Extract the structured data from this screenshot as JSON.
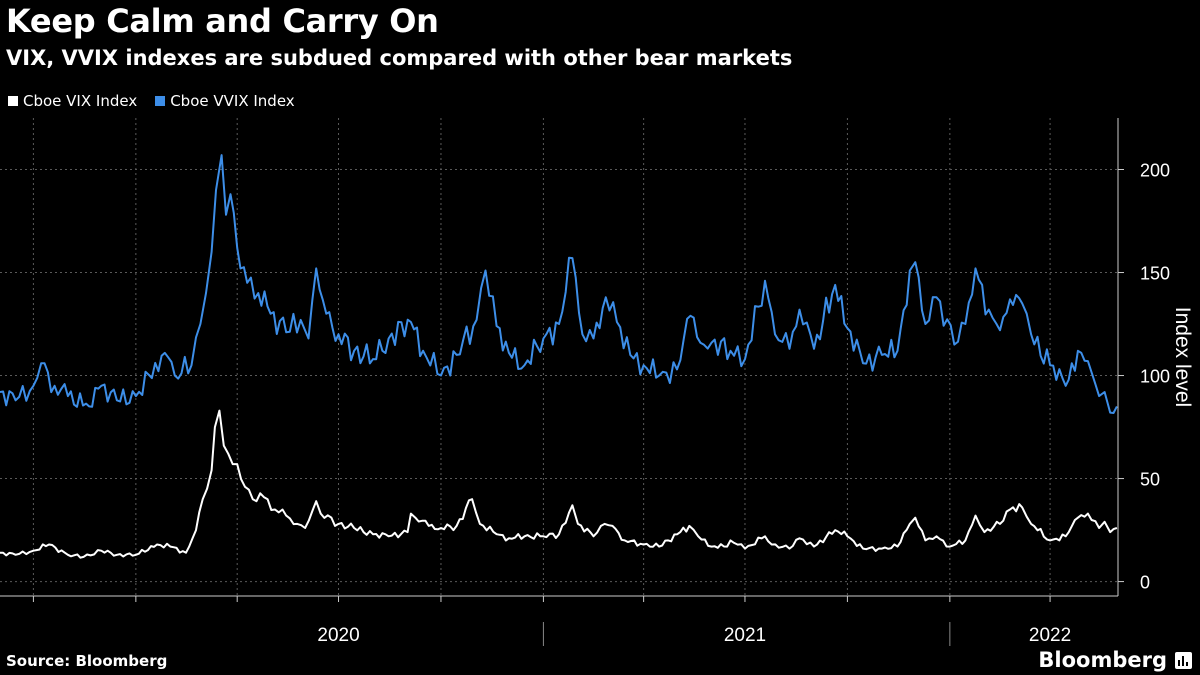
{
  "title": "Keep Calm and Carry On",
  "subtitle": "VIX, VVIX indexes are subdued compared with other bear markets",
  "source": "Source: Bloomberg",
  "brand": "Bloomberg",
  "chart_data": {
    "type": "line",
    "ylabel": "Index level",
    "ylim": [
      -7,
      225
    ],
    "yticks": [
      0,
      50,
      100,
      150,
      200
    ],
    "xlim": [
      "2019-09-01",
      "2022-06-01"
    ],
    "x_major_labels": [
      {
        "label": "2020",
        "date": "2020-07-01"
      },
      {
        "label": "2021",
        "date": "2021-07-01"
      },
      {
        "label": "2022",
        "date": "2022-04-01"
      }
    ],
    "x_year_dividers": [
      "2021-01-01",
      "2022-01-01"
    ],
    "x_minor_ticks": [
      "2019-10-01",
      "2020-01-01",
      "2020-04-01",
      "2020-07-01",
      "2020-10-01",
      "2021-01-01",
      "2021-04-01",
      "2021-07-01",
      "2021-10-01",
      "2022-01-01",
      "2022-04-01"
    ],
    "grid": true,
    "legend_position": "top-left",
    "series": [
      {
        "name": "Cboe VIX Index",
        "color": "#ffffff",
        "points": [
          [
            "2019-09-01",
            14
          ],
          [
            "2019-09-15",
            13
          ],
          [
            "2019-10-01",
            15
          ],
          [
            "2019-10-15",
            18
          ],
          [
            "2019-11-01",
            13
          ],
          [
            "2019-11-15",
            12
          ],
          [
            "2019-12-01",
            15
          ],
          [
            "2019-12-15",
            13
          ],
          [
            "2020-01-01",
            13
          ],
          [
            "2020-01-20",
            18
          ],
          [
            "2020-02-01",
            17
          ],
          [
            "2020-02-15",
            14
          ],
          [
            "2020-02-24",
            25
          ],
          [
            "2020-03-01",
            40
          ],
          [
            "2020-03-09",
            54
          ],
          [
            "2020-03-12",
            75
          ],
          [
            "2020-03-16",
            83
          ],
          [
            "2020-03-20",
            66
          ],
          [
            "2020-03-24",
            62
          ],
          [
            "2020-03-28",
            57
          ],
          [
            "2020-04-01",
            57
          ],
          [
            "2020-04-08",
            46
          ],
          [
            "2020-04-15",
            40
          ],
          [
            "2020-04-25",
            41
          ],
          [
            "2020-05-05",
            35
          ],
          [
            "2020-05-15",
            32
          ],
          [
            "2020-05-25",
            28
          ],
          [
            "2020-06-01",
            26
          ],
          [
            "2020-06-11",
            39
          ],
          [
            "2020-06-15",
            33
          ],
          [
            "2020-07-01",
            28
          ],
          [
            "2020-07-15",
            26
          ],
          [
            "2020-08-01",
            23
          ],
          [
            "2020-08-15",
            22
          ],
          [
            "2020-09-01",
            24
          ],
          [
            "2020-09-04",
            33
          ],
          [
            "2020-09-08",
            31
          ],
          [
            "2020-09-20",
            27
          ],
          [
            "2020-10-01",
            26
          ],
          [
            "2020-10-15",
            27
          ],
          [
            "2020-10-29",
            40
          ],
          [
            "2020-11-05",
            28
          ],
          [
            "2020-11-20",
            23
          ],
          [
            "2020-12-01",
            21
          ],
          [
            "2020-12-15",
            22
          ],
          [
            "2021-01-01",
            22
          ],
          [
            "2021-01-15",
            23
          ],
          [
            "2021-01-27",
            37
          ],
          [
            "2021-02-01",
            28
          ],
          [
            "2021-02-15",
            22
          ],
          [
            "2021-02-25",
            28
          ],
          [
            "2021-03-04",
            27
          ],
          [
            "2021-03-15",
            20
          ],
          [
            "2021-04-01",
            18
          ],
          [
            "2021-04-15",
            17
          ],
          [
            "2021-05-12",
            27
          ],
          [
            "2021-05-20",
            22
          ],
          [
            "2021-06-01",
            17
          ],
          [
            "2021-06-15",
            17
          ],
          [
            "2021-06-18",
            20
          ],
          [
            "2021-07-01",
            16
          ],
          [
            "2021-07-19",
            22
          ],
          [
            "2021-07-25",
            18
          ],
          [
            "2021-08-10",
            16
          ],
          [
            "2021-08-19",
            21
          ],
          [
            "2021-09-01",
            17
          ],
          [
            "2021-09-20",
            25
          ],
          [
            "2021-10-01",
            22
          ],
          [
            "2021-10-15",
            16
          ],
          [
            "2021-11-01",
            16
          ],
          [
            "2021-11-15",
            17
          ],
          [
            "2021-11-26",
            28
          ],
          [
            "2021-12-01",
            31
          ],
          [
            "2021-12-10",
            20
          ],
          [
            "2021-12-20",
            22
          ],
          [
            "2022-01-01",
            17
          ],
          [
            "2022-01-15",
            20
          ],
          [
            "2022-01-24",
            32
          ],
          [
            "2022-02-01",
            24
          ],
          [
            "2022-02-15",
            28
          ],
          [
            "2022-02-24",
            35
          ],
          [
            "2022-03-07",
            36
          ],
          [
            "2022-03-15",
            28
          ],
          [
            "2022-04-01",
            20
          ],
          [
            "2022-04-15",
            22
          ],
          [
            "2022-04-26",
            31
          ],
          [
            "2022-05-05",
            33
          ],
          [
            "2022-05-15",
            26
          ],
          [
            "2022-05-20",
            29
          ],
          [
            "2022-05-25",
            24
          ],
          [
            "2022-05-31",
            26
          ]
        ]
      },
      {
        "name": "Cboe VVIX Index",
        "color": "#3d8ee8",
        "points": [
          [
            "2019-09-01",
            92
          ],
          [
            "2019-09-15",
            88
          ],
          [
            "2019-10-01",
            95
          ],
          [
            "2019-10-08",
            106
          ],
          [
            "2019-10-20",
            95
          ],
          [
            "2019-11-01",
            90
          ],
          [
            "2019-11-20",
            85
          ],
          [
            "2019-12-01",
            95
          ],
          [
            "2019-12-15",
            88
          ],
          [
            "2020-01-01",
            90
          ],
          [
            "2020-01-27",
            111
          ],
          [
            "2020-02-05",
            100
          ],
          [
            "2020-02-20",
            105
          ],
          [
            "2020-02-28",
            125
          ],
          [
            "2020-03-04",
            140
          ],
          [
            "2020-03-09",
            160
          ],
          [
            "2020-03-13",
            190
          ],
          [
            "2020-03-18",
            207
          ],
          [
            "2020-03-22",
            178
          ],
          [
            "2020-03-26",
            188
          ],
          [
            "2020-04-01",
            162
          ],
          [
            "2020-04-10",
            145
          ],
          [
            "2020-04-20",
            140
          ],
          [
            "2020-05-01",
            130
          ],
          [
            "2020-05-15",
            121
          ],
          [
            "2020-05-28",
            127
          ],
          [
            "2020-06-04",
            118
          ],
          [
            "2020-06-11",
            152
          ],
          [
            "2020-06-20",
            130
          ],
          [
            "2020-07-01",
            120
          ],
          [
            "2020-07-15",
            112
          ],
          [
            "2020-08-01",
            108
          ],
          [
            "2020-08-15",
            118
          ],
          [
            "2020-09-04",
            126
          ],
          [
            "2020-09-15",
            112
          ],
          [
            "2020-10-01",
            100
          ],
          [
            "2020-10-15",
            110
          ],
          [
            "2020-11-02",
            127
          ],
          [
            "2020-11-10",
            151
          ],
          [
            "2020-11-20",
            124
          ],
          [
            "2020-12-01",
            111
          ],
          [
            "2020-12-15",
            105
          ],
          [
            "2021-01-01",
            118
          ],
          [
            "2021-01-15",
            125
          ],
          [
            "2021-01-27",
            157
          ],
          [
            "2021-02-05",
            120
          ],
          [
            "2021-02-15",
            118
          ],
          [
            "2021-02-26",
            138
          ],
          [
            "2021-03-08",
            126
          ],
          [
            "2021-03-20",
            110
          ],
          [
            "2021-04-01",
            105
          ],
          [
            "2021-04-15",
            100
          ],
          [
            "2021-05-01",
            103
          ],
          [
            "2021-05-13",
            129
          ],
          [
            "2021-05-25",
            115
          ],
          [
            "2021-06-01",
            116
          ],
          [
            "2021-06-18",
            112
          ],
          [
            "2021-07-01",
            108
          ],
          [
            "2021-07-19",
            146
          ],
          [
            "2021-07-28",
            120
          ],
          [
            "2021-08-10",
            113
          ],
          [
            "2021-08-19",
            132
          ],
          [
            "2021-09-01",
            113
          ],
          [
            "2021-09-20",
            144
          ],
          [
            "2021-10-01",
            123
          ],
          [
            "2021-10-15",
            106
          ],
          [
            "2021-11-01",
            110
          ],
          [
            "2021-11-15",
            112
          ],
          [
            "2021-11-26",
            151
          ],
          [
            "2021-12-01",
            155
          ],
          [
            "2021-12-10",
            125
          ],
          [
            "2021-12-20",
            138
          ],
          [
            "2022-01-05",
            115
          ],
          [
            "2022-01-15",
            125
          ],
          [
            "2022-01-24",
            152
          ],
          [
            "2022-02-05",
            132
          ],
          [
            "2022-02-15",
            122
          ],
          [
            "2022-02-24",
            137
          ],
          [
            "2022-03-07",
            135
          ],
          [
            "2022-03-15",
            120
          ],
          [
            "2022-04-01",
            105
          ],
          [
            "2022-04-15",
            95
          ],
          [
            "2022-04-26",
            112
          ],
          [
            "2022-05-05",
            107
          ],
          [
            "2022-05-15",
            90
          ],
          [
            "2022-05-20",
            92
          ],
          [
            "2022-05-25",
            82
          ],
          [
            "2022-05-31",
            85
          ]
        ]
      }
    ]
  }
}
